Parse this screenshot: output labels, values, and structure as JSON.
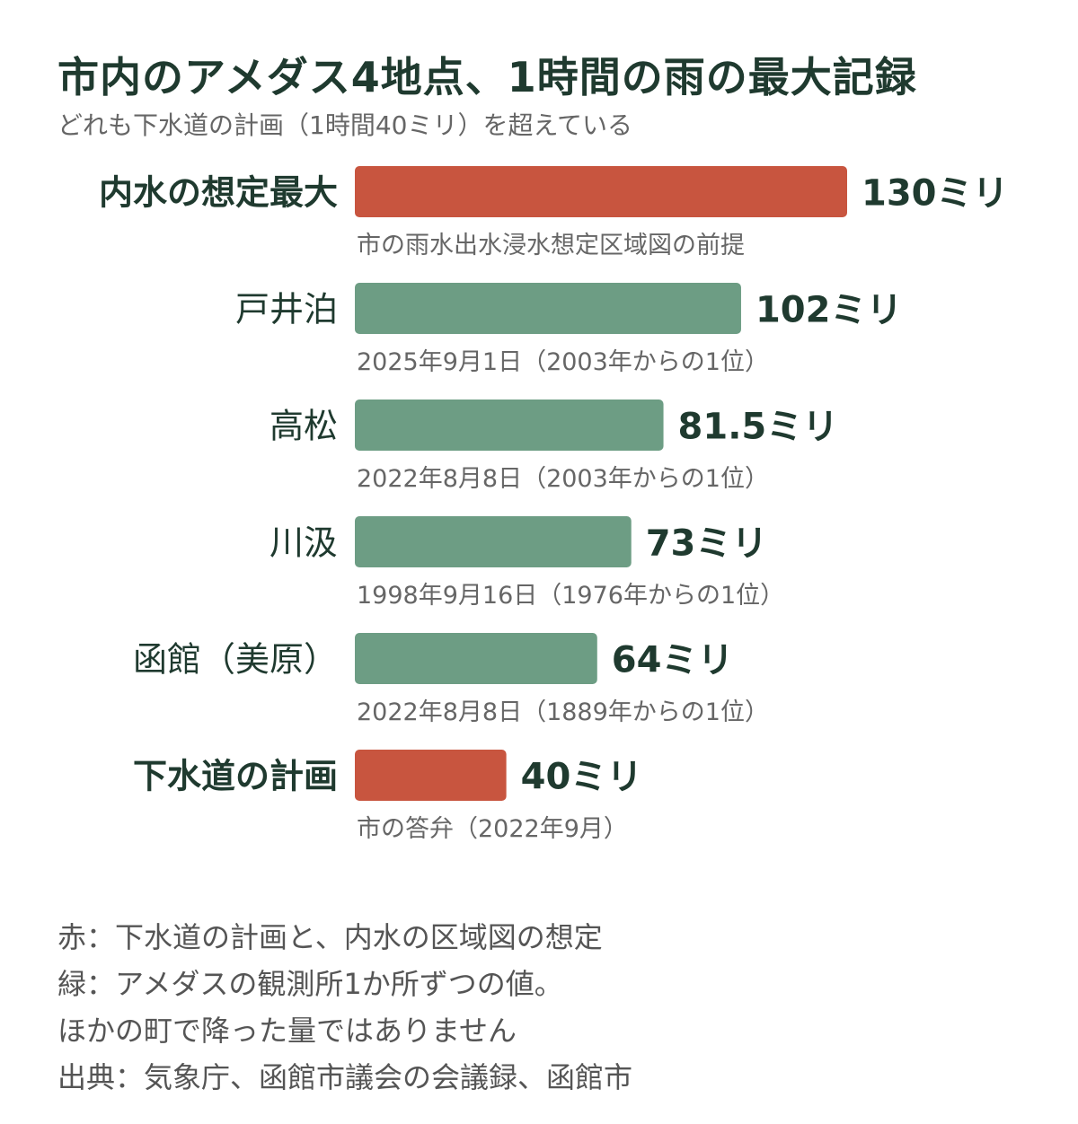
{
  "header": {
    "title": "市内のアメダス4地点、1時間の雨の最大記録",
    "subtitle": "どれも下水道の計画（1時間40ミリ）を超えている"
  },
  "colors": {
    "highlight": "#c8553f",
    "station": "#6d9d84",
    "text_dark": "#1f3a2f",
    "text_muted": "#666666"
  },
  "chart_data": {
    "type": "bar",
    "orientation": "horizontal",
    "unit": "ミリ",
    "xlim": [
      0,
      130
    ],
    "grid": false,
    "legend": "none",
    "categories": [
      "内水の想定最大",
      "戸井泊",
      "高松",
      "川汲",
      "函館（美原）",
      "下水道の計画"
    ],
    "values": [
      130,
      102,
      81.5,
      73,
      64,
      40
    ],
    "value_labels": [
      "130ミリ",
      "102ミリ",
      "81.5ミリ",
      "73ミリ",
      "64ミリ",
      "40ミリ"
    ],
    "notes": [
      "市の雨水出水浸水想定区域図の前提",
      "2025年9月1日（2003年からの1位）",
      "2022年8月8日（2003年からの1位）",
      "1998年9月16日（1976年からの1位）",
      "2022年8月8日（1889年からの1位）",
      "市の答弁（2022年9月）"
    ],
    "bar_colors": [
      "#c8553f",
      "#6d9d84",
      "#6d9d84",
      "#6d9d84",
      "#6d9d84",
      "#c8553f"
    ],
    "bold_labels": [
      true,
      false,
      false,
      false,
      false,
      true
    ]
  },
  "footer": {
    "lines": [
      "赤：下水道の計画と、内水の区域図の想定",
      "緑：アメダスの観測所1か所ずつの値。",
      "ほかの町で降った量ではありません",
      "出典：気象庁、函館市議会の会議録、函館市"
    ]
  }
}
